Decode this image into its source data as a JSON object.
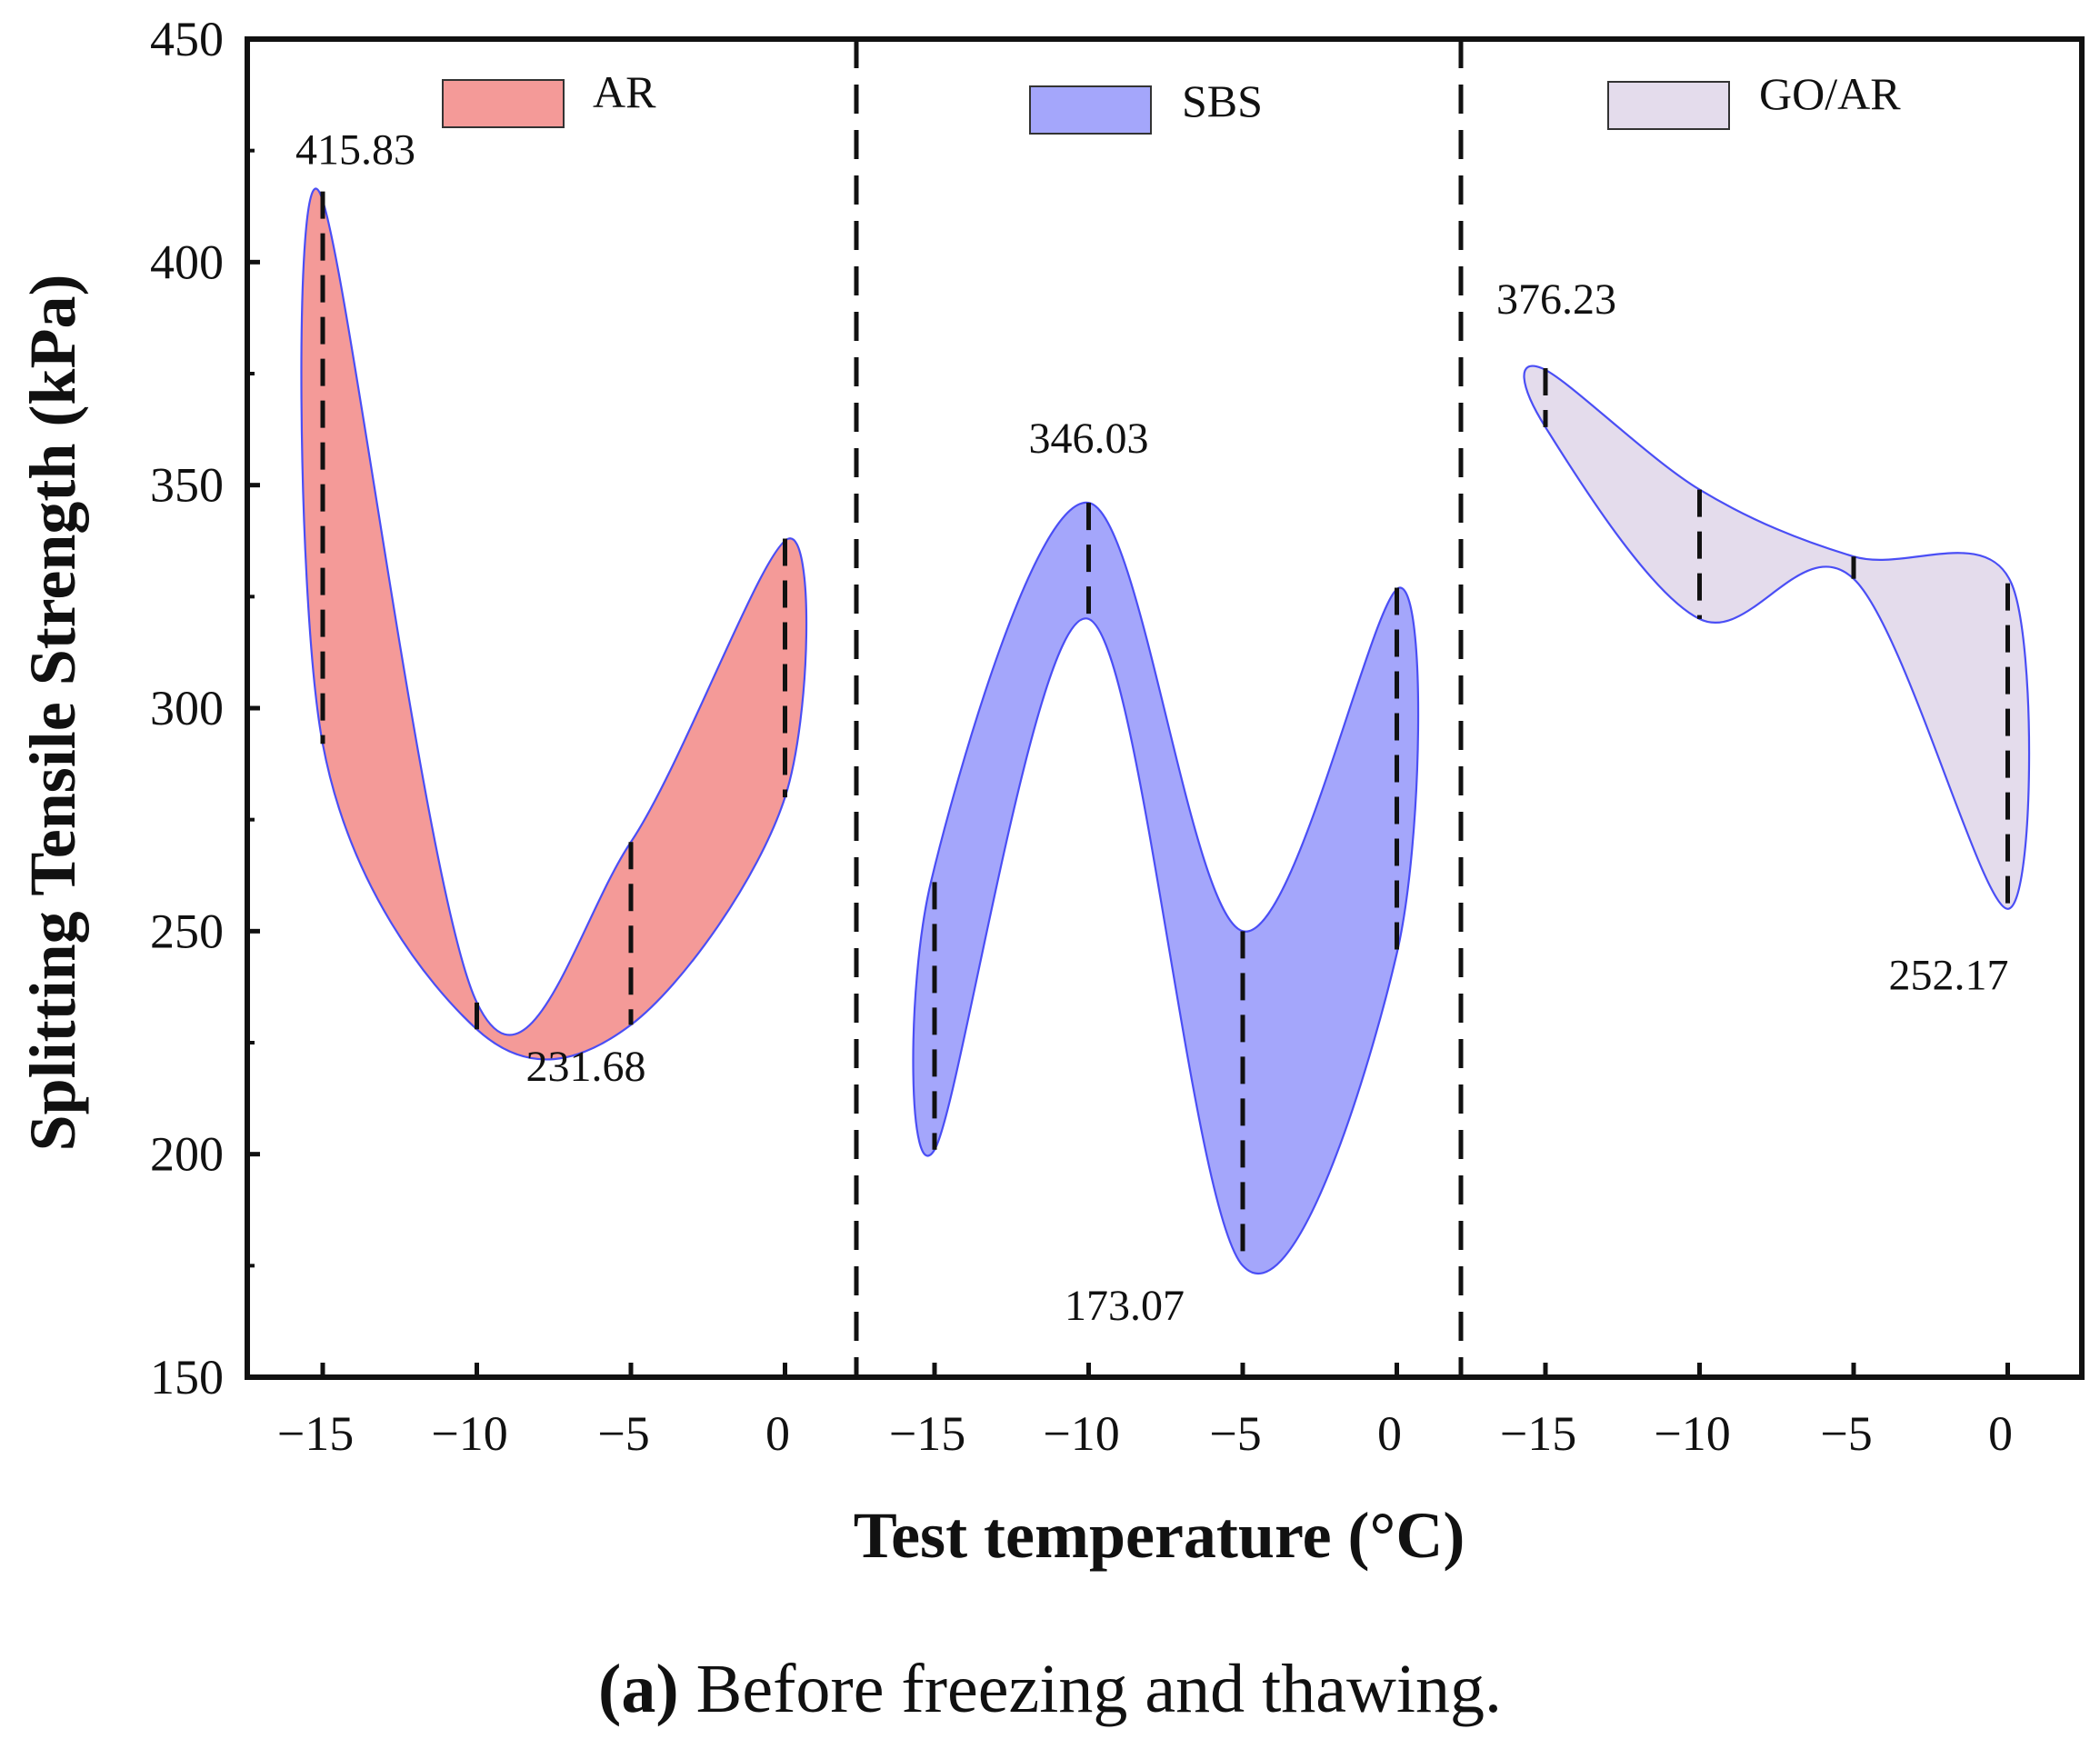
{
  "chart_data": {
    "type": "area",
    "title": "",
    "xlabel": "Test temperature (°C)",
    "ylabel": "Splitting Tensile Strength (kPa)",
    "ylim": [
      150,
      450
    ],
    "yticks": [
      "150",
      "200",
      "250",
      "300",
      "350",
      "400",
      "450"
    ],
    "xticks": [
      "−15",
      "−10",
      "−5",
      "0"
    ],
    "x": [
      -15,
      -10,
      -5,
      0
    ],
    "series": [
      {
        "name": "AR",
        "color": "#f49a98",
        "upper": [
          415.83,
          234,
          270,
          338
        ],
        "lower": [
          292,
          228,
          229,
          280
        ],
        "annotations": [
          {
            "x": -15,
            "y": 415.83,
            "text": "415.83"
          },
          {
            "x": -10,
            "y": 231.68,
            "text": "231.68"
          }
        ]
      },
      {
        "name": "SBS",
        "color": "#a4a6fb",
        "upper": [
          261,
          346.03,
          250,
          327
        ],
        "lower": [
          201,
          320,
          175,
          245
        ],
        "annotations": [
          {
            "x": -10,
            "y": 346.03,
            "text": "346.03"
          },
          {
            "x": -5,
            "y": 173.07,
            "text": "173.07"
          }
        ]
      },
      {
        "name": "GO/AR",
        "color": "#e4dcec",
        "upper": [
          376.23,
          349,
          334,
          328
        ],
        "lower": [
          363,
          320,
          329,
          255
        ],
        "annotations": [
          {
            "x": -15,
            "y": 376.23,
            "text": "376.23"
          },
          {
            "x": 0,
            "y": 252.17,
            "text": "252.17"
          }
        ]
      }
    ]
  },
  "caption": {
    "label": "(a)",
    "text": " Before freezing and thawing."
  }
}
